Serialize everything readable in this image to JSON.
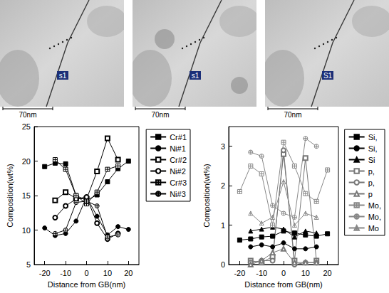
{
  "micrographs": [
    {
      "label": "s1",
      "scale_bar": "70nm"
    },
    {
      "label": "s1",
      "scale_bar": "70nm"
    },
    {
      "label": "S1",
      "scale_bar": "70nm"
    }
  ],
  "chart_data": [
    {
      "type": "line",
      "xlabel": "Distance from GB(nm)",
      "ylabel": "Composition(wt%)",
      "x": [
        -20,
        -15,
        -10,
        -5,
        0,
        5,
        10,
        15,
        20
      ],
      "xlim": [
        -25,
        25
      ],
      "xticks": [
        -20,
        -10,
        0,
        10,
        20
      ],
      "ylim": [
        5,
        25
      ],
      "yticks": [
        5,
        10,
        15,
        20,
        25
      ],
      "grid": false,
      "legend": "right",
      "series": [
        {
          "name": "Cr#1",
          "color": "#000000",
          "marker": "square",
          "line_style": "solid",
          "values": [
            19.2,
            19.7,
            19.6,
            15.0,
            14.3,
            15.1,
            17.0,
            18.9,
            20.0
          ]
        },
        {
          "name": "Ni#1",
          "color": "#000000",
          "marker": "circle",
          "line_style": "solid",
          "values": [
            10.3,
            9.2,
            9.5,
            11.3,
            14.8,
            12.0,
            9.3,
            10.5,
            10.1
          ]
        },
        {
          "name": "Cr#2",
          "color": "#000000",
          "marker": "open-square",
          "line_style": "solid",
          "values": [
            null,
            14.3,
            15.5,
            14.6,
            14.5,
            18.5,
            23.3,
            20.2,
            null
          ]
        },
        {
          "name": "Ni#2",
          "color": "#000000",
          "marker": "open-circle",
          "line_style": "solid",
          "values": [
            null,
            11.8,
            13.5,
            14.5,
            14.8,
            11.0,
            8.7,
            9.5,
            null
          ]
        },
        {
          "name": "Cr#3",
          "color": "#000000",
          "marker": "crossed-square",
          "line_style": "solid",
          "values": [
            null,
            20.2,
            18.8,
            15.0,
            13.8,
            15.5,
            18.8,
            19.3,
            null
          ]
        },
        {
          "name": "Ni#3",
          "color": "#000000",
          "marker": "crossed-circle",
          "line_style": "solid",
          "values": [
            null,
            9.5,
            10.0,
            14.0,
            14.2,
            13.5,
            9.0,
            9.3,
            null
          ]
        }
      ]
    },
    {
      "type": "line",
      "xlabel": "Distance from GB(nm)",
      "ylabel": "Composition(wt%)",
      "x": [
        -20,
        -15,
        -10,
        -5,
        0,
        5,
        10,
        15,
        20
      ],
      "xlim": [
        -25,
        25
      ],
      "xticks": [
        -20,
        -10,
        0,
        10,
        20
      ],
      "ylim": [
        0,
        3.5
      ],
      "yticks": [
        0,
        1,
        2,
        3
      ],
      "grid": false,
      "legend": "right",
      "series": [
        {
          "name": "Si,",
          "color": "#000000",
          "marker": "square",
          "line_style": "solid",
          "values": [
            0.62,
            0.65,
            0.7,
            0.72,
            0.85,
            0.8,
            0.75,
            0.72,
            0.78
          ]
        },
        {
          "name": "Si,",
          "color": "#000000",
          "marker": "circle",
          "line_style": "solid",
          "values": [
            null,
            0.45,
            0.5,
            0.45,
            0.55,
            0.4,
            0.4,
            0.45,
            null
          ]
        },
        {
          "name": "Si",
          "color": "#000000",
          "marker": "triangle",
          "line_style": "solid",
          "values": [
            null,
            0.85,
            0.9,
            0.95,
            0.9,
            0.7,
            0.85,
            0.8,
            null
          ]
        },
        {
          "name": "p,",
          "color": "#777777",
          "marker": "open-square",
          "line_style": "solid",
          "values": [
            null,
            0.1,
            0.05,
            0.2,
            2.8,
            0.1,
            2.7,
            0.1,
            null
          ]
        },
        {
          "name": "p,",
          "color": "#777777",
          "marker": "open-circle",
          "line_style": "solid",
          "values": [
            null,
            0.05,
            0.1,
            0.1,
            2.9,
            0.0,
            0.05,
            0.05,
            null
          ]
        },
        {
          "name": "p",
          "color": "#777777",
          "marker": "open-triangle",
          "line_style": "solid",
          "values": [
            null,
            0.0,
            0.1,
            0.3,
            0.4,
            0.05,
            0.05,
            0.05,
            null
          ]
        },
        {
          "name": "Mo,",
          "color": "#888888",
          "marker": "crossed-square",
          "line_style": "solid",
          "values": [
            1.85,
            2.5,
            2.3,
            1.0,
            3.1,
            2.5,
            1.8,
            1.6,
            2.4
          ]
        },
        {
          "name": "Mo,",
          "color": "#888888",
          "marker": "crossed-circle",
          "line_style": "solid",
          "values": [
            null,
            2.85,
            2.75,
            1.5,
            1.3,
            1.2,
            3.2,
            3.0,
            null
          ]
        },
        {
          "name": "Mo",
          "color": "#888888",
          "marker": "crossed-triangle",
          "line_style": "solid",
          "values": [
            null,
            1.3,
            1.05,
            1.2,
            2.1,
            1.0,
            1.3,
            1.2,
            null
          ]
        }
      ]
    }
  ]
}
